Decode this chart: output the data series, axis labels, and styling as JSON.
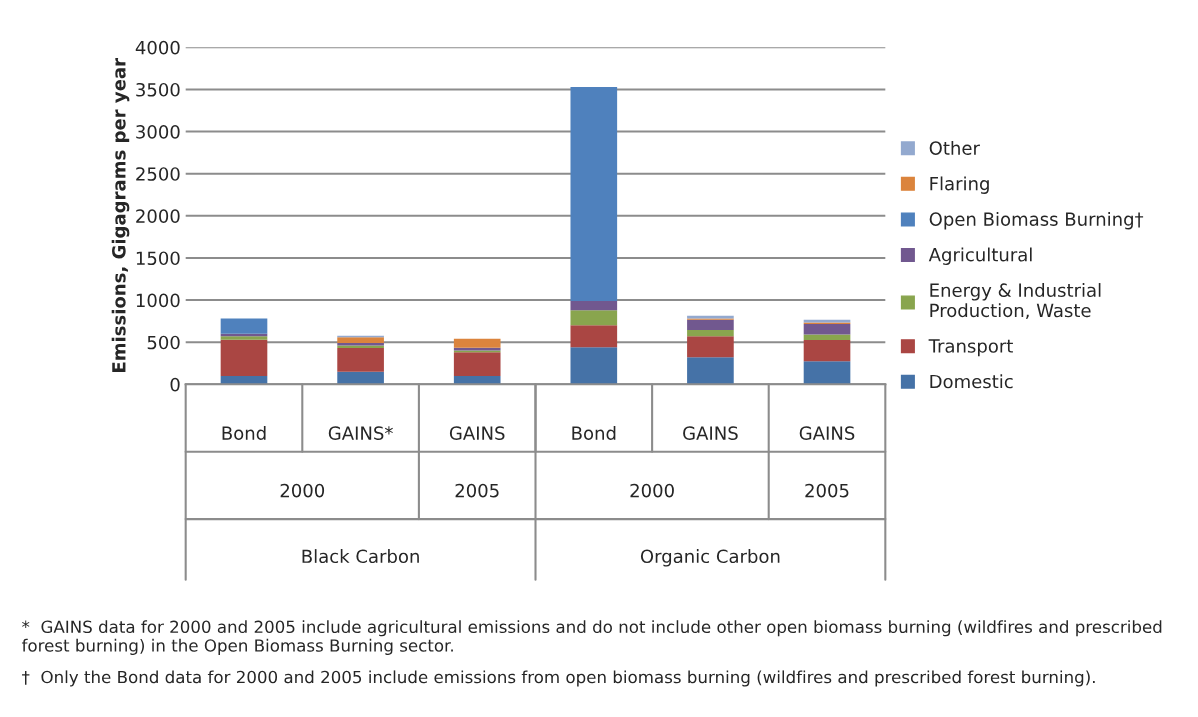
{
  "chart_data": {
    "type": "bar",
    "stacked": true,
    "ylabel": "Emissions, Gigagrams per year",
    "categories": [
      "Bond",
      "GAINS*",
      "GAINS",
      "Bond",
      "GAINS",
      "GAINS"
    ],
    "series": [
      {
        "name": "Domestic",
        "color": "#4572a7",
        "values": [
          100,
          150,
          100,
          440,
          320,
          275
        ]
      },
      {
        "name": "Transport",
        "color": "#aa4643",
        "values": [
          430,
          280,
          280,
          260,
          250,
          250
        ]
      },
      {
        "name": "Energy & Industrial\nProduction, Waste",
        "color": "#89a54e",
        "values": [
          40,
          30,
          20,
          180,
          75,
          65
        ]
      },
      {
        "name": "Agricultural",
        "color": "#71588f",
        "values": [
          30,
          30,
          35,
          110,
          120,
          125
        ]
      },
      {
        "name": "Open Biomass Burning†",
        "color": "#4f81bd",
        "values": [
          180,
          0,
          0,
          2540,
          0,
          0
        ]
      },
      {
        "name": "Flaring",
        "color": "#db843d",
        "values": [
          0,
          70,
          105,
          0,
          15,
          20
        ]
      },
      {
        "name": "Other",
        "color": "#93a9cf",
        "values": [
          0,
          15,
          0,
          0,
          35,
          30
        ]
      }
    ],
    "ylim": [
      0,
      4000
    ],
    "yticks": [
      0,
      500,
      1000,
      1500,
      2000,
      2500,
      3000,
      3500,
      4000
    ],
    "grid": "y",
    "legend": "right",
    "annotations": [
      "2000",
      "2005",
      "2000",
      "2005",
      "Black Carbon",
      "Organic Carbon",
      "*  GAINS data for 2000 and 2005 include agricultural emissions and do not include other open biomass burning (wildfires and prescribed forest burning) in the Open Biomass Burning sector.",
      "†  Only the Bond data for 2000 and 2005 include emissions from open biomass burning (wildfires and prescribed forest burning)."
    ]
  }
}
